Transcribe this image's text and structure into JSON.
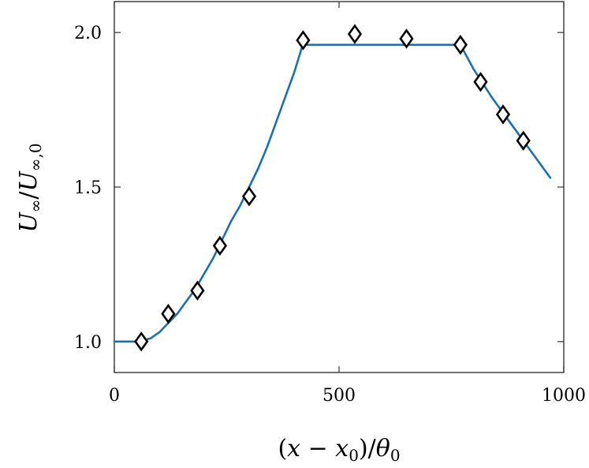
{
  "chart_data": {
    "type": "line",
    "title": "",
    "xlabel": "(x − x0)/θ0",
    "ylabel": "U∞/U∞,0",
    "xlim": [
      0,
      1000
    ],
    "ylim": [
      0.9,
      2.1
    ],
    "xticks": [
      0,
      500,
      1000
    ],
    "xtick_labels": [
      "0",
      "500",
      "1000"
    ],
    "yticks": [
      1.0,
      1.5,
      2.0
    ],
    "ytick_labels": [
      "1.0",
      "1.5",
      "2.0"
    ],
    "grid": false,
    "legend": "none",
    "series": [
      {
        "kind": "line",
        "color": "#1a6fb5",
        "x": [
          0,
          55,
          80,
          100,
          120,
          140,
          160,
          180,
          200,
          220,
          240,
          260,
          280,
          300,
          320,
          340,
          360,
          380,
          400,
          418,
          420,
          600,
          770,
          800,
          840,
          880,
          920,
          960,
          970
        ],
        "y": [
          1.0,
          1.0,
          1.01,
          1.03,
          1.06,
          1.09,
          1.13,
          1.17,
          1.22,
          1.27,
          1.33,
          1.39,
          1.44,
          1.5,
          1.56,
          1.63,
          1.71,
          1.79,
          1.87,
          1.955,
          1.96,
          1.96,
          1.96,
          1.88,
          1.79,
          1.71,
          1.63,
          1.55,
          1.53
        ]
      },
      {
        "kind": "markers",
        "marker": "diamond",
        "color": "#000000",
        "x": [
          60,
          120,
          185,
          235,
          300,
          420,
          535,
          650,
          770,
          815,
          865,
          910
        ],
        "y": [
          1.0,
          1.09,
          1.165,
          1.31,
          1.47,
          1.975,
          1.995,
          1.98,
          1.96,
          1.84,
          1.735,
          1.65
        ]
      }
    ]
  }
}
